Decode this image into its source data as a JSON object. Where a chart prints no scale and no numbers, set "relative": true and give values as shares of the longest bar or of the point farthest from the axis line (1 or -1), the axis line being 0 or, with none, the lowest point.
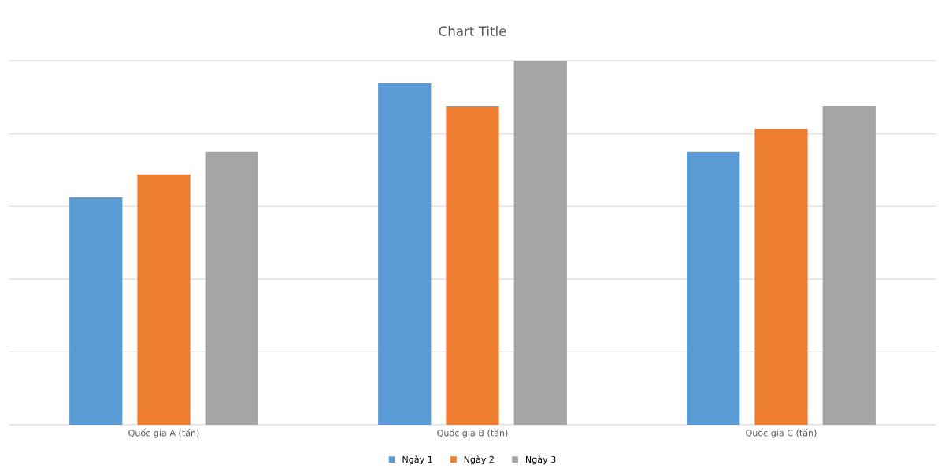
{
  "chart_data": {
    "type": "bar",
    "title": "Chart Title",
    "relative": true,
    "grid": "y",
    "legend": "bottom",
    "categories": [
      "Quốc gia A (tấn)",
      "Quốc gia B (tấn)",
      "Quốc gia C (tấn)"
    ],
    "series": [
      {
        "name": "Ngày 1",
        "color": "#5b9bd5",
        "values": [
          0.625,
          0.9375,
          0.75
        ]
      },
      {
        "name": "Ngày 2",
        "color": "#ed7d31",
        "values": [
          0.6875,
          0.875,
          0.8125
        ]
      },
      {
        "name": "Ngày 3",
        "color": "#a5a5a5",
        "values": [
          0.75,
          1,
          0.875
        ]
      }
    ]
  }
}
